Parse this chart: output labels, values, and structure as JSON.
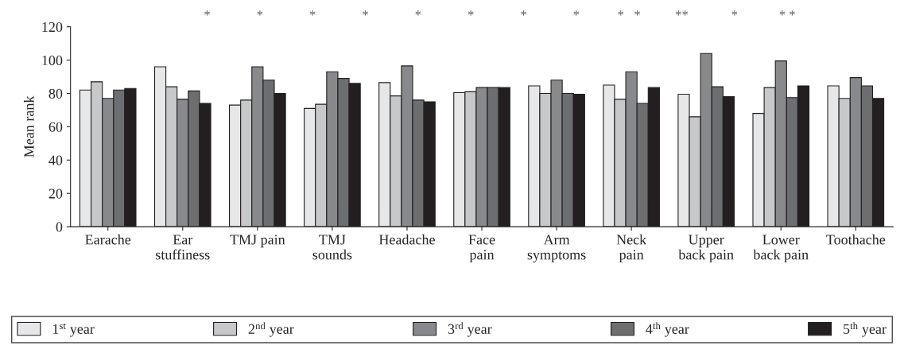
{
  "chart_data": {
    "type": "bar",
    "ylabel": "Mean rank",
    "categories": [
      "Earache",
      "Ear\nstuffiness",
      "TMJ pain",
      "TMJ\nsounds",
      "Headache",
      "Face\npain",
      "Arm\nsymptoms",
      "Neck\npain",
      "Upper\nback pain",
      "Lower\nback pain",
      "Toothache"
    ],
    "series": [
      {
        "name": "1$^{st}$ year",
        "color": "#e6e7e8",
        "values": [
          82,
          96,
          73,
          71,
          86.5,
          80.5,
          84.5,
          85,
          79.5,
          68,
          84.5
        ]
      },
      {
        "name": "2$^{nd}$ year",
        "color": "#c7c8ca",
        "values": [
          87,
          84,
          76,
          73.5,
          78.5,
          81,
          80,
          76.5,
          66,
          83.5,
          77
        ]
      },
      {
        "name": "3$^{rd}$ year",
        "color": "#88898c",
        "values": [
          77,
          76.5,
          96,
          93,
          96.5,
          83.5,
          88,
          93,
          104,
          99.5,
          89.5
        ]
      },
      {
        "name": "4$^{th}$ year",
        "color": "#6d6e71",
        "values": [
          82,
          81.5,
          88,
          89,
          76,
          83.5,
          80,
          74,
          84,
          77.5,
          84.5
        ]
      },
      {
        "name": "5$^{th}$ year",
        "color": "#231f20",
        "values": [
          83,
          74,
          80,
          86,
          75,
          83.5,
          79.5,
          83.5,
          78,
          84.5,
          77
        ]
      }
    ],
    "ylim": [
      0,
      120
    ],
    "yticks": [
      0,
      20,
      40,
      60,
      80,
      100,
      120
    ],
    "legend": "bottom",
    "grid": false,
    "annotations": [
      "*",
      "*",
      "*",
      "*",
      "*",
      "*",
      "*",
      "*",
      "*   *",
      "**",
      "*",
      "* *"
    ]
  }
}
